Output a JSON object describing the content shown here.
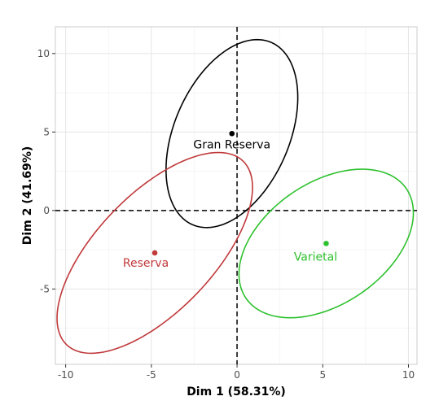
{
  "chart_data": {
    "type": "scatter",
    "title": "",
    "xlabel": "Dim 1 (58.31%)",
    "ylabel": "Dim 2 (41.69%)",
    "xlim": [
      -10.6,
      10.5
    ],
    "ylim": [
      -9.8,
      11.7
    ],
    "xticks": [
      -10,
      -5,
      0,
      5,
      10
    ],
    "yticks": [
      -5,
      0,
      5,
      10
    ],
    "x_tick_labels": [
      "-10",
      "-5",
      "0",
      "5",
      "10"
    ],
    "y_tick_labels": [
      "-5",
      "0",
      "5",
      "10"
    ],
    "grid": true,
    "reference_lines": {
      "x": 0,
      "y": 0,
      "style": "dashed"
    },
    "legend": "none",
    "groups": [
      {
        "label": "Gran Reserva",
        "color": "#000000",
        "centroid": [
          -0.3,
          4.9
        ],
        "ellipse": {
          "center": [
            -0.3,
            4.9
          ],
          "semi_major": 6.25,
          "semi_minor": 3.4,
          "angle_deg": 70
        }
      },
      {
        "label": "Reserva",
        "color": "#c0393b",
        "centroid": [
          -4.8,
          -2.7
        ],
        "ellipse": {
          "center": [
            -4.8,
            -2.7
          ],
          "semi_major": 7.8,
          "semi_minor": 3.55,
          "angle_deg": 50
        }
      },
      {
        "label": "Varietal",
        "color": "#2ec12e",
        "centroid": [
          5.2,
          -2.1
        ],
        "ellipse": {
          "center": [
            5.2,
            -2.1
          ],
          "semi_major": 5.85,
          "semi_minor": 3.75,
          "angle_deg": 40
        }
      }
    ]
  }
}
